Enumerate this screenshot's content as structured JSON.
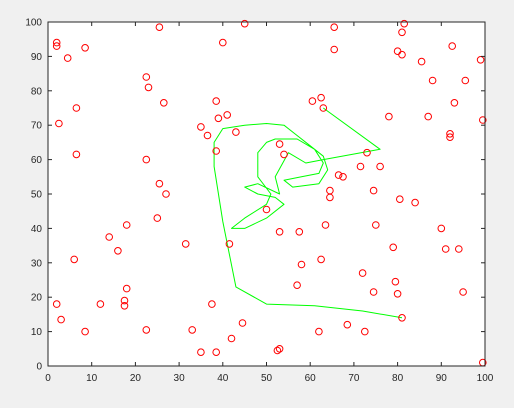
{
  "chart_data": {
    "type": "scatter",
    "title": "",
    "xlabel": "",
    "ylabel": "",
    "xlim": [
      0,
      100
    ],
    "ylim": [
      0,
      100
    ],
    "xticks": [
      "0",
      "10",
      "20",
      "30",
      "40",
      "50",
      "60",
      "70",
      "80",
      "90",
      "100"
    ],
    "yticks": [
      "0",
      "10",
      "20",
      "30",
      "40",
      "50",
      "60",
      "70",
      "80",
      "90",
      "100"
    ],
    "grid": false,
    "marker_color": "#ff0000",
    "line_color": "#00ff00",
    "scatter_points": [
      [
        2,
        94
      ],
      [
        2,
        93
      ],
      [
        4.5,
        89.5
      ],
      [
        8.5,
        92.5
      ],
      [
        25.5,
        98.5
      ],
      [
        45,
        99.5
      ],
      [
        65.5,
        98.5
      ],
      [
        81.5,
        99.5
      ],
      [
        81,
        97
      ],
      [
        40,
        94
      ],
      [
        65.5,
        92
      ],
      [
        80,
        91.5
      ],
      [
        81,
        90.5
      ],
      [
        85.5,
        88.5
      ],
      [
        92.5,
        93
      ],
      [
        95.5,
        83
      ],
      [
        99,
        89
      ],
      [
        6.5,
        75
      ],
      [
        2.5,
        70.5
      ],
      [
        22.5,
        84
      ],
      [
        23,
        81
      ],
      [
        26.5,
        76.5
      ],
      [
        38.5,
        77
      ],
      [
        41,
        73
      ],
      [
        39,
        72
      ],
      [
        35,
        69.5
      ],
      [
        36.5,
        67
      ],
      [
        38.5,
        62.5
      ],
      [
        43,
        68
      ],
      [
        53,
        64.5
      ],
      [
        54,
        61.5
      ],
      [
        60.5,
        77
      ],
      [
        62.5,
        78
      ],
      [
        63,
        75
      ],
      [
        88,
        83
      ],
      [
        93,
        76.5
      ],
      [
        92,
        67.5
      ],
      [
        92,
        66.5
      ],
      [
        87,
        72.5
      ],
      [
        78,
        72.5
      ],
      [
        99.5,
        71.5
      ],
      [
        6.5,
        61.5
      ],
      [
        22.5,
        60
      ],
      [
        25.5,
        53
      ],
      [
        27,
        50
      ],
      [
        25,
        43
      ],
      [
        18,
        41
      ],
      [
        14,
        37.5
      ],
      [
        16,
        33.5
      ],
      [
        6,
        31
      ],
      [
        31.5,
        35.5
      ],
      [
        41.5,
        35.5
      ],
      [
        50,
        45.5
      ],
      [
        53,
        39
      ],
      [
        57.5,
        39
      ],
      [
        63.5,
        41
      ],
      [
        64.5,
        49
      ],
      [
        64.5,
        51
      ],
      [
        66.5,
        55.5
      ],
      [
        67.5,
        55
      ],
      [
        71.5,
        58
      ],
      [
        73,
        62
      ],
      [
        76,
        58
      ],
      [
        74.5,
        51
      ],
      [
        80.5,
        48.5
      ],
      [
        84,
        47.5
      ],
      [
        75,
        41
      ],
      [
        79,
        34.5
      ],
      [
        90,
        40
      ],
      [
        91,
        34
      ],
      [
        94,
        34
      ],
      [
        58,
        29.5
      ],
      [
        62.5,
        31
      ],
      [
        57,
        23.5
      ],
      [
        72,
        27
      ],
      [
        74.5,
        21.5
      ],
      [
        79.5,
        24.5
      ],
      [
        80,
        21
      ],
      [
        95,
        21.5
      ],
      [
        18,
        22.5
      ],
      [
        17.5,
        19
      ],
      [
        17.5,
        17.5
      ],
      [
        12,
        18
      ],
      [
        2,
        18
      ],
      [
        3,
        13.5
      ],
      [
        8.5,
        10
      ],
      [
        22.5,
        10.5
      ],
      [
        33,
        10.5
      ],
      [
        37.5,
        18
      ],
      [
        38.5,
        4
      ],
      [
        35,
        4
      ],
      [
        44.5,
        12.5
      ],
      [
        42,
        8
      ],
      [
        52.5,
        4.5
      ],
      [
        53,
        5
      ],
      [
        62,
        10
      ],
      [
        68.5,
        12
      ],
      [
        72.5,
        10
      ],
      [
        81,
        14
      ],
      [
        99.5,
        1
      ]
    ],
    "path": [
      [
        63,
        75
      ],
      [
        76,
        63
      ],
      [
        63,
        60
      ],
      [
        59,
        59
      ],
      [
        55,
        62
      ],
      [
        52,
        55
      ],
      [
        53,
        50
      ],
      [
        48,
        53
      ],
      [
        45,
        52
      ],
      [
        48,
        50
      ],
      [
        52,
        49
      ],
      [
        54,
        47
      ],
      [
        50,
        43
      ],
      [
        45,
        40
      ],
      [
        42,
        40
      ],
      [
        45,
        43
      ],
      [
        50,
        47
      ],
      [
        51,
        50
      ],
      [
        48,
        55
      ],
      [
        48,
        62
      ],
      [
        50,
        65
      ],
      [
        52,
        66
      ],
      [
        57,
        66
      ],
      [
        61,
        63
      ],
      [
        63,
        59
      ],
      [
        62,
        56
      ],
      [
        58,
        55
      ],
      [
        54,
        54
      ],
      [
        56,
        52
      ],
      [
        62,
        53
      ],
      [
        64,
        57
      ],
      [
        63,
        61
      ],
      [
        60,
        64
      ],
      [
        57,
        67
      ],
      [
        54,
        70
      ],
      [
        50,
        70.5
      ],
      [
        45,
        70
      ],
      [
        40,
        69
      ],
      [
        38,
        65
      ],
      [
        38,
        58
      ],
      [
        40,
        42
      ],
      [
        43,
        23
      ],
      [
        50,
        18
      ],
      [
        61,
        17.5
      ],
      [
        72,
        16
      ],
      [
        81,
        14
      ]
    ]
  }
}
